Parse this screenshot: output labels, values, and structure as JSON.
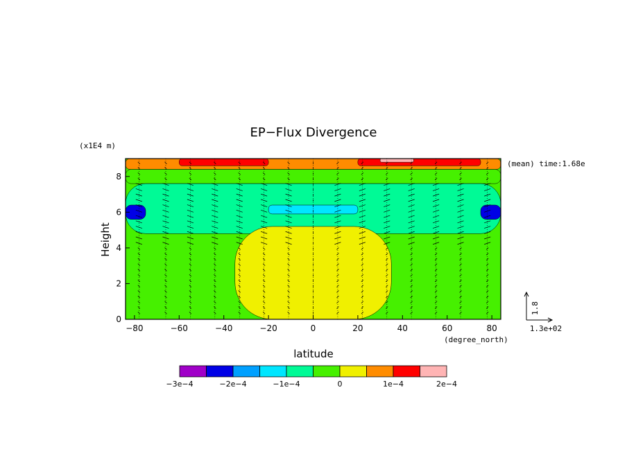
{
  "chart_data": {
    "type": "heatmap",
    "title": "EP−Flux Divergence",
    "xlabel": "latitude",
    "ylabel": "Height",
    "x_units": "(degree_north)",
    "y_units": "(x1E4 m)",
    "annotation": "(mean) time:1.68e",
    "xlim": [
      -84,
      84
    ],
    "ylim": [
      0,
      9
    ],
    "x_ticks": [
      -80,
      -60,
      -40,
      -20,
      0,
      20,
      40,
      60,
      80
    ],
    "x_tick_labels": [
      "−80",
      "−60",
      "−40",
      "−20",
      "0",
      "20",
      "40",
      "60",
      "80"
    ],
    "y_ticks": [
      0,
      2,
      4,
      6,
      8
    ],
    "y_tick_labels": [
      "0",
      "2",
      "4",
      "6",
      "8"
    ],
    "grid": false,
    "colorbar": {
      "boundaries": [
        -0.0003,
        -0.00025,
        -0.0002,
        -0.00015,
        -0.0001,
        -5e-05,
        0,
        5e-05,
        0.0001,
        0.00015,
        0.0002
      ],
      "colors": [
        "#a000c8",
        "#0000e6",
        "#00a0ff",
        "#00e6ff",
        "#00fa96",
        "#46f000",
        "#f0f000",
        "#ff8c00",
        "#ff0000",
        "#ffb4b4"
      ],
      "tick_labels": [
        "−3e−4",
        "−2e−4",
        "−1e−4",
        "0",
        "1e−4",
        "2e−4"
      ],
      "tick_values": [
        -0.0003,
        -0.0002,
        -0.0001,
        0,
        0.0001,
        0.0002
      ]
    },
    "field": {
      "description_levels": "approximate EP-flux divergence by latitude band and height",
      "bands": [
        {
          "z": [
            8.4,
            9.0
          ],
          "lat": [
            -84,
            84
          ],
          "value": 5.5e-05
        },
        {
          "z": [
            8.6,
            9.0
          ],
          "lat": [
            -60,
            -20
          ],
          "value": 0.00011
        },
        {
          "z": [
            8.6,
            9.0
          ],
          "lat": [
            20,
            75
          ],
          "value": 0.00011
        },
        {
          "z": [
            8.8,
            9.0
          ],
          "lat": [
            30,
            45
          ],
          "value": 0.00016
        },
        {
          "z": [
            7.6,
            8.4
          ],
          "lat": [
            -84,
            84
          ],
          "value": -2e-05
        },
        {
          "z": [
            4.8,
            7.6
          ],
          "lat": [
            -84,
            84
          ],
          "value": -7e-05
        },
        {
          "z": [
            5.6,
            6.4
          ],
          "lat": [
            -84,
            -75
          ],
          "value": -0.00022
        },
        {
          "z": [
            5.6,
            6.4
          ],
          "lat": [
            75,
            84
          ],
          "value": -0.00022
        },
        {
          "z": [
            5.9,
            6.4
          ],
          "lat": [
            -20,
            20
          ],
          "value": -0.00012
        },
        {
          "z": [
            0,
            5.2
          ],
          "lat": [
            -35,
            35
          ],
          "value": 2e-05
        }
      ]
    },
    "vector_reference": {
      "label_x": "1.3e+02",
      "label_y": "1.8"
    }
  }
}
